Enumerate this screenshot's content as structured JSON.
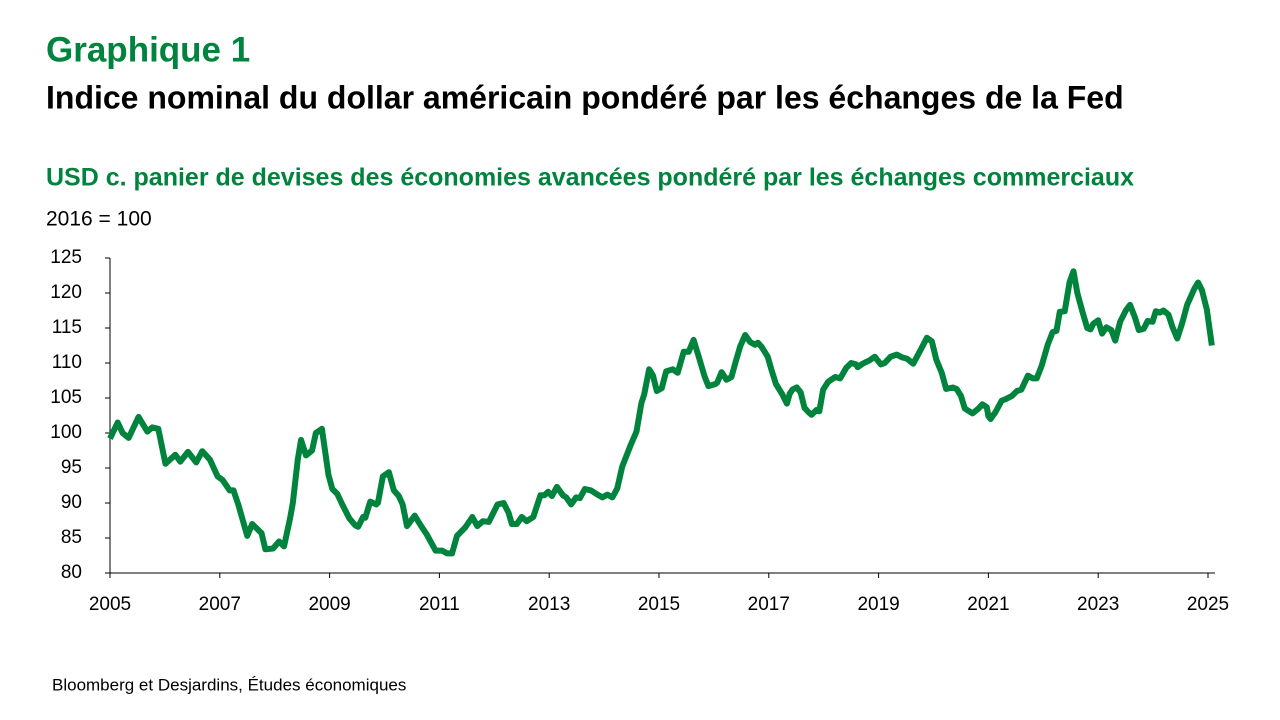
{
  "chart_data": {
    "type": "line",
    "title": "Graphique 1",
    "subtitle": "Indice nominal du dollar américain pondéré par les échanges de la Fed",
    "description": "USD c. panier de devises des économies avancées pondéré par les échanges commerciaux",
    "y_label": "2016 = 100",
    "source": "Bloomberg et Desjardins, Études économiques",
    "color": "#00843d",
    "xlim": [
      2005,
      2025
    ],
    "xticks": [
      2005,
      2007,
      2009,
      2011,
      2013,
      2015,
      2017,
      2019,
      2021,
      2023,
      2025
    ],
    "ylim": [
      80,
      125
    ],
    "yticks": [
      80,
      85,
      90,
      95,
      100,
      105,
      110,
      115,
      120,
      125
    ],
    "x": [
      2005.0,
      2005.14,
      2005.23,
      2005.34,
      2005.52,
      2005.68,
      2005.77,
      2005.88,
      2006.01,
      2006.19,
      2006.28,
      2006.42,
      2006.57,
      2006.68,
      2006.82,
      2006.96,
      2007.05,
      2007.18,
      2007.25,
      2007.34,
      2007.5,
      2007.59,
      2007.76,
      2007.83,
      2007.97,
      2008.08,
      2008.17,
      2008.28,
      2008.33,
      2008.42,
      2008.48,
      2008.57,
      2008.68,
      2008.75,
      2008.86,
      2008.98,
      2009.05,
      2009.14,
      2009.23,
      2009.36,
      2009.47,
      2009.52,
      2009.61,
      2009.65,
      2009.74,
      2009.85,
      2009.88,
      2009.97,
      2010.08,
      2010.17,
      2010.26,
      2010.33,
      2010.41,
      2010.55,
      2010.66,
      2010.77,
      2010.93,
      2011.05,
      2011.14,
      2011.23,
      2011.32,
      2011.47,
      2011.6,
      2011.69,
      2011.79,
      2011.9,
      2012.06,
      2012.17,
      2012.26,
      2012.32,
      2012.41,
      2012.5,
      2012.59,
      2012.71,
      2012.84,
      2012.91,
      2012.98,
      2013.05,
      2013.14,
      2013.25,
      2013.31,
      2013.4,
      2013.49,
      2013.56,
      2013.65,
      2013.76,
      2013.88,
      2013.97,
      2014.06,
      2014.15,
      2014.24,
      2014.33,
      2014.48,
      2014.59,
      2014.68,
      2014.73,
      2014.82,
      2014.89,
      2014.96,
      2015.05,
      2015.13,
      2015.25,
      2015.34,
      2015.45,
      2015.54,
      2015.63,
      2015.72,
      2015.83,
      2015.9,
      2016.03,
      2016.06,
      2016.14,
      2016.23,
      2016.32,
      2016.39,
      2016.48,
      2016.57,
      2016.66,
      2016.75,
      2016.8,
      2016.87,
      2016.98,
      2017.05,
      2017.13,
      2017.24,
      2017.33,
      2017.38,
      2017.43,
      2017.51,
      2017.58,
      2017.65,
      2017.72,
      2017.78,
      2017.87,
      2017.92,
      2017.99,
      2018.08,
      2018.21,
      2018.3,
      2018.41,
      2018.5,
      2018.59,
      2018.62,
      2018.71,
      2018.84,
      2018.93,
      2019.04,
      2019.11,
      2019.22,
      2019.33,
      2019.43,
      2019.52,
      2019.63,
      2019.76,
      2019.88,
      2019.97,
      2020.05,
      2020.15,
      2020.23,
      2020.35,
      2020.42,
      2020.5,
      2020.57,
      2020.71,
      2020.82,
      2020.89,
      2020.97,
      2021.0,
      2021.04,
      2021.13,
      2021.24,
      2021.33,
      2021.43,
      2021.52,
      2021.6,
      2021.72,
      2021.81,
      2021.88,
      2021.97,
      2022.08,
      2022.17,
      2022.24,
      2022.3,
      2022.39,
      2022.48,
      2022.55,
      2022.62,
      2022.71,
      2022.8,
      2022.86,
      2022.91,
      2023.0,
      2023.07,
      2023.15,
      2023.24,
      2023.31,
      2023.4,
      2023.51,
      2023.58,
      2023.67,
      2023.74,
      2023.83,
      2023.9,
      2023.99,
      2024.05,
      2024.12,
      2024.19,
      2024.28,
      2024.35,
      2024.44,
      2024.53,
      2024.62,
      2024.75,
      2024.82,
      2024.89,
      2024.98,
      2025.07
    ],
    "values": [
      99.2,
      101.5,
      100,
      99.3,
      102.3,
      100.2,
      100.8,
      100.6,
      95.6,
      96.9,
      95.9,
      97.3,
      95.8,
      97.4,
      96.2,
      93.8,
      93.3,
      91.8,
      91.8,
      89.7,
      85.3,
      87,
      85.7,
      83.4,
      83.5,
      84.5,
      83.8,
      87.8,
      90,
      96.2,
      99,
      96.8,
      97.5,
      100,
      100.6,
      94,
      92,
      91.3,
      89.8,
      87.8,
      86.8,
      86.6,
      88,
      87.9,
      90.2,
      89.8,
      90,
      93.8,
      94.4,
      91.8,
      91,
      89.8,
      86.7,
      88.2,
      86.8,
      85.5,
      83.2,
      83.2,
      82.8,
      82.8,
      85.3,
      86.5,
      88,
      86.7,
      87.4,
      87.3,
      89.8,
      90,
      88.6,
      87,
      87,
      88,
      87.4,
      88,
      91.1,
      91.1,
      91.6,
      91,
      92.3,
      91.1,
      90.8,
      89.8,
      90.8,
      90.7,
      92,
      91.8,
      91.2,
      90.8,
      91.2,
      90.8,
      92.1,
      95.2,
      98.2,
      100.2,
      104.3,
      105.5,
      109.1,
      108.2,
      106,
      106.4,
      108.8,
      109.1,
      108.6,
      111.6,
      111.6,
      113.3,
      111,
      108.1,
      106.7,
      107,
      107.2,
      108.7,
      107.6,
      108,
      110,
      112.4,
      114,
      113,
      112.6,
      112.9,
      112.3,
      110.9,
      109,
      107,
      105.6,
      104.2,
      105.6,
      106.2,
      106.5,
      105.8,
      103.6,
      103,
      102.6,
      103.3,
      103.1,
      106.2,
      107.3,
      108,
      107.8,
      109.3,
      110,
      109.8,
      109.4,
      109.9,
      110.4,
      110.9,
      109.8,
      110,
      110.9,
      111.2,
      110.8,
      110.6,
      109.9,
      111.8,
      113.6,
      113.1,
      110.5,
      108.6,
      106.3,
      106.5,
      106.3,
      105.3,
      103.5,
      102.8,
      103.5,
      104.1,
      103.7,
      102.4,
      102,
      103,
      104.6,
      104.9,
      105.3,
      106,
      106.2,
      108.2,
      107.8,
      107.8,
      109.6,
      112.6,
      114.4,
      114.6,
      117.3,
      117.4,
      121.6,
      123.1,
      120,
      117.4,
      115,
      114.8,
      115.6,
      116.1,
      114.2,
      115.1,
      114.7,
      113.2,
      115.9,
      117.6,
      118.3,
      116.5,
      114.7,
      114.9,
      116,
      115.9,
      117.4,
      117.2,
      117.5,
      116.9,
      115.2,
      113.5,
      115.7,
      118.3,
      120.6,
      121.5,
      120.4,
      117.6,
      112.5
    ]
  }
}
